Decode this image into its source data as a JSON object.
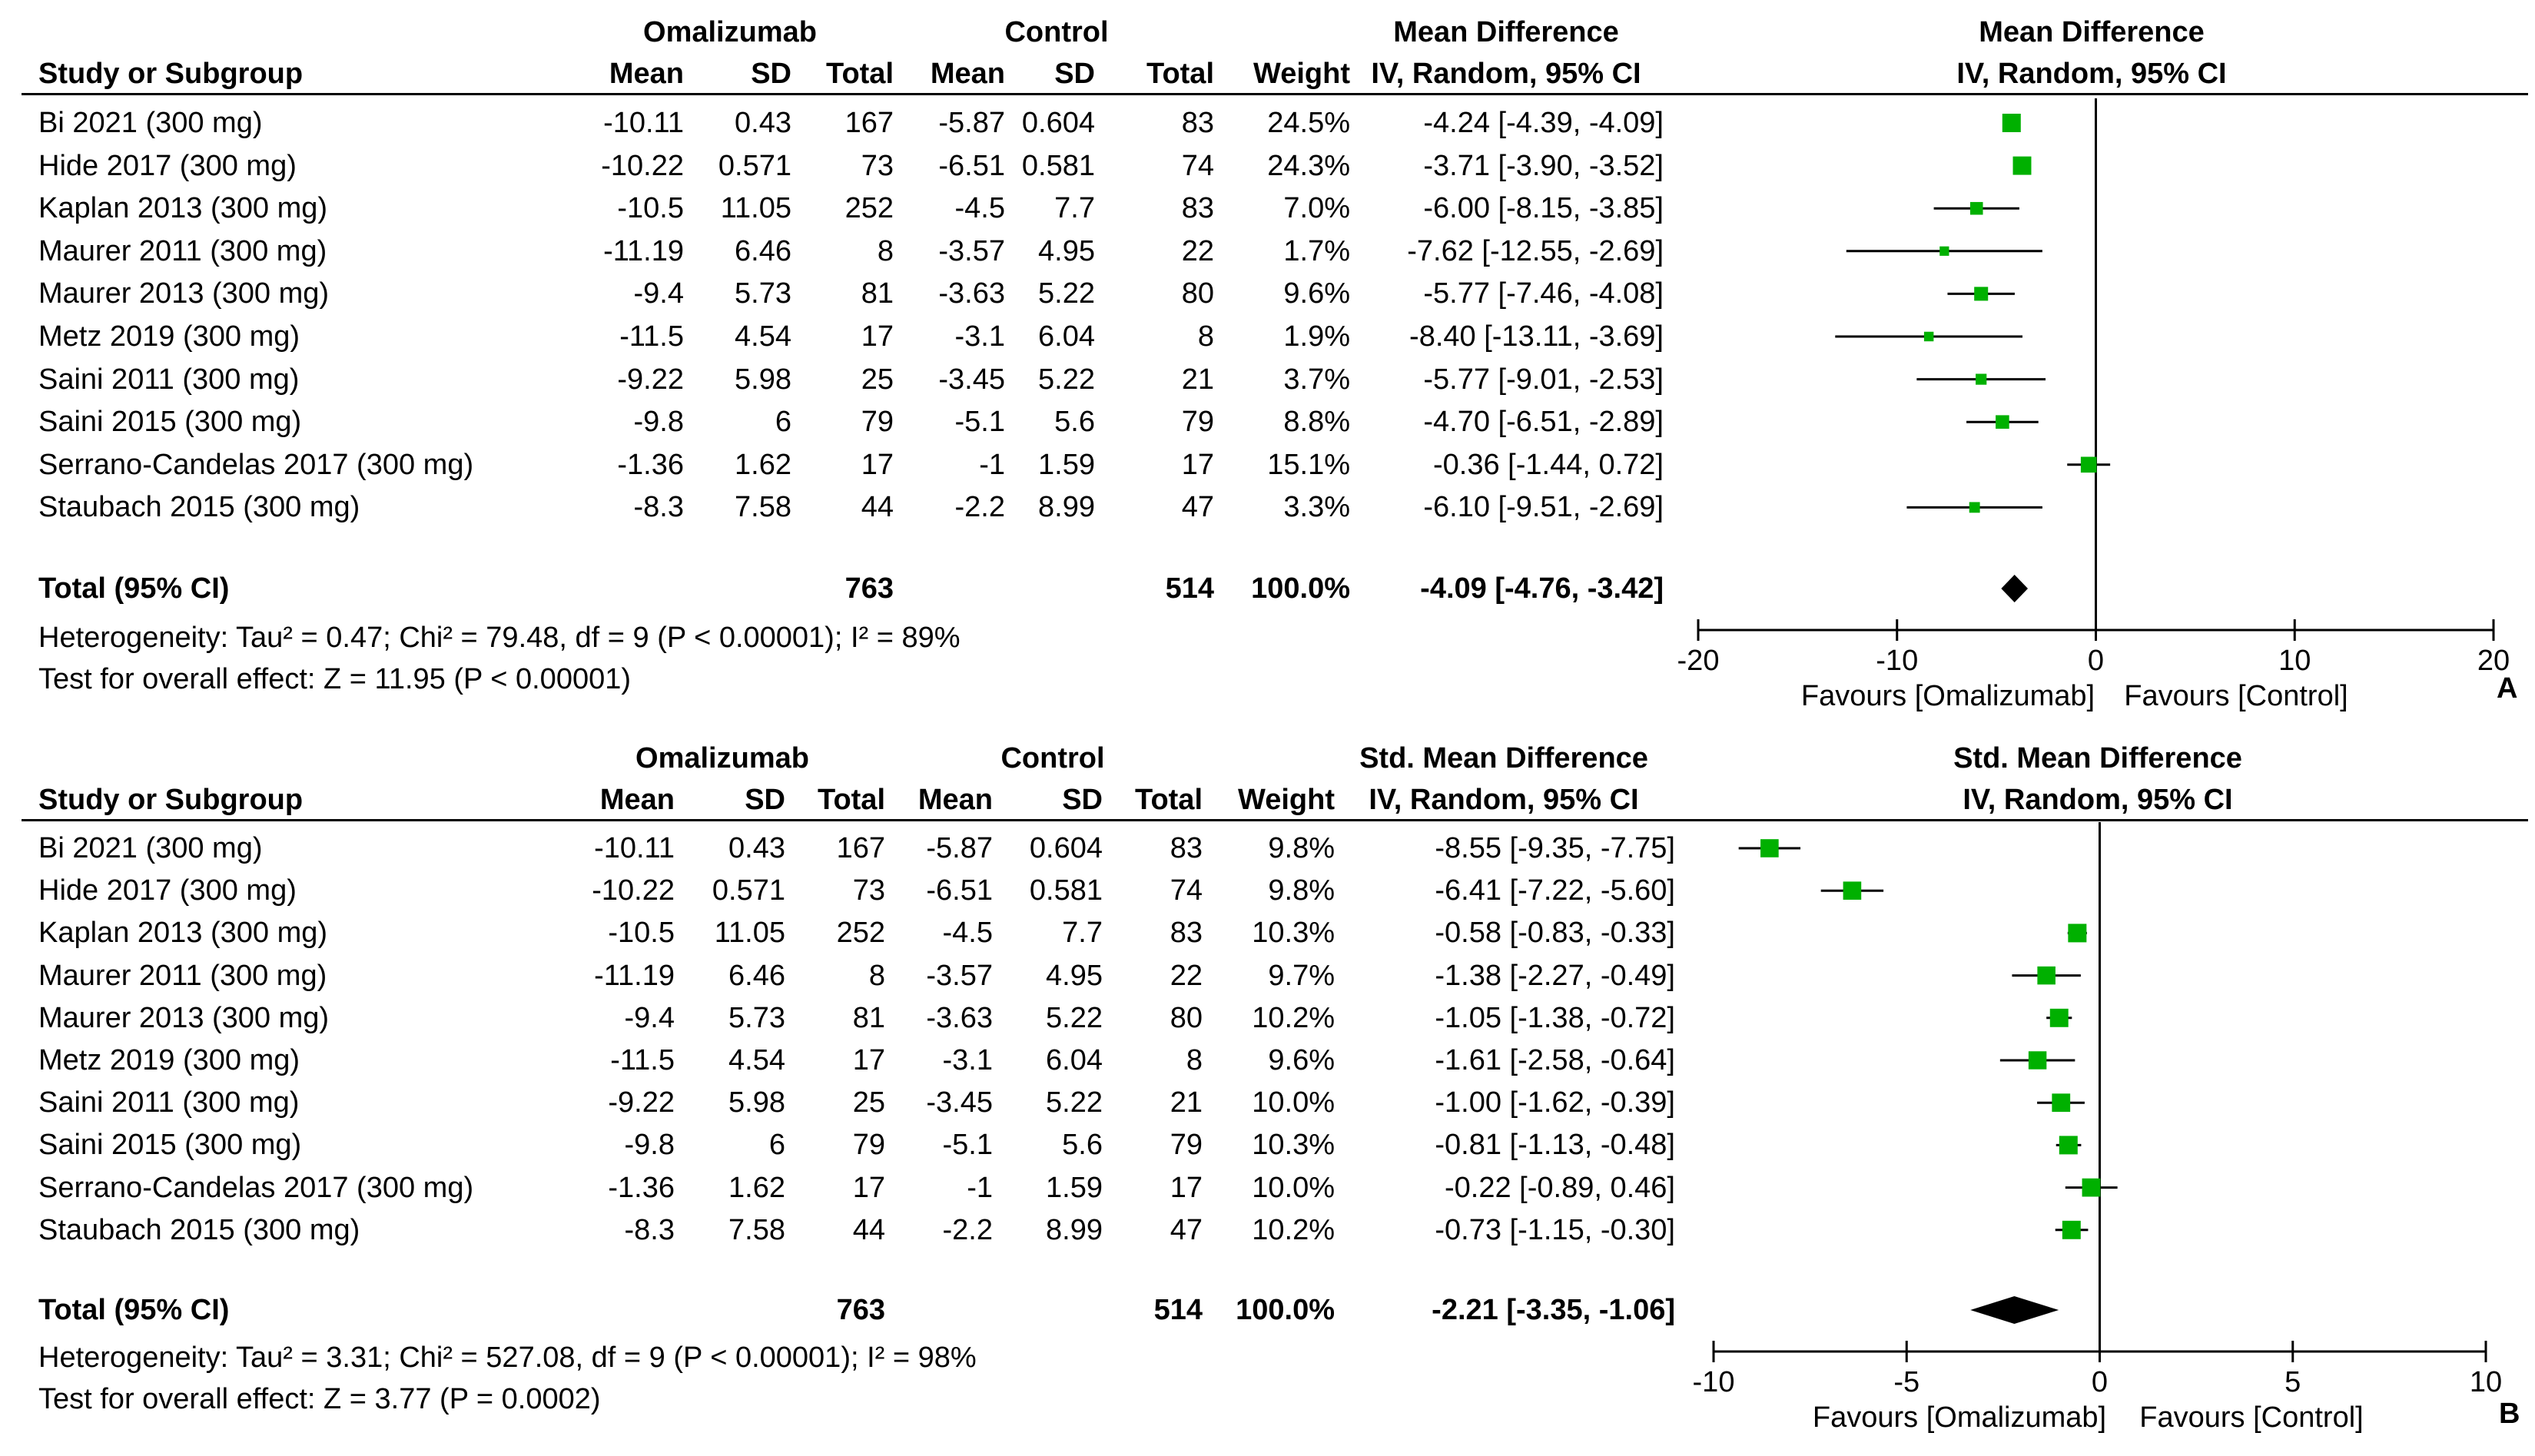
{
  "panels": [
    {
      "id": "A",
      "panel_label": "A",
      "group1_header": "Omalizumab",
      "group2_header": "Control",
      "effect_header": "Mean Difference",
      "plot_header": "Mean Difference",
      "method_header": "IV, Random, 95% CI",
      "col_study": "Study or Subgroup",
      "col_mean": "Mean",
      "col_sd": "SD",
      "col_total": "Total",
      "col_weight": "Weight",
      "rows": [
        {
          "study": "Bi 2021 (300 mg)",
          "m1": "-10.11",
          "sd1": "0.43",
          "n1": "167",
          "m2": "-5.87",
          "sd2": "0.604",
          "n2": "83",
          "weight": "24.5%",
          "ci": "-4.24 [-4.39, -4.09]"
        },
        {
          "study": "Hide 2017 (300 mg)",
          "m1": "-10.22",
          "sd1": "0.571",
          "n1": "73",
          "m2": "-6.51",
          "sd2": "0.581",
          "n2": "74",
          "weight": "24.3%",
          "ci": "-3.71 [-3.90, -3.52]"
        },
        {
          "study": "Kaplan 2013 (300 mg)",
          "m1": "-10.5",
          "sd1": "11.05",
          "n1": "252",
          "m2": "-4.5",
          "sd2": "7.7",
          "n2": "83",
          "weight": "7.0%",
          "ci": "-6.00 [-8.15, -3.85]"
        },
        {
          "study": "Maurer 2011 (300 mg)",
          "m1": "-11.19",
          "sd1": "6.46",
          "n1": "8",
          "m2": "-3.57",
          "sd2": "4.95",
          "n2": "22",
          "weight": "1.7%",
          "ci": "-7.62 [-12.55, -2.69]"
        },
        {
          "study": "Maurer 2013 (300 mg)",
          "m1": "-9.4",
          "sd1": "5.73",
          "n1": "81",
          "m2": "-3.63",
          "sd2": "5.22",
          "n2": "80",
          "weight": "9.6%",
          "ci": "-5.77 [-7.46, -4.08]"
        },
        {
          "study": "Metz 2019 (300 mg)",
          "m1": "-11.5",
          "sd1": "4.54",
          "n1": "17",
          "m2": "-3.1",
          "sd2": "6.04",
          "n2": "8",
          "weight": "1.9%",
          "ci": "-8.40 [-13.11, -3.69]"
        },
        {
          "study": "Saini 2011 (300 mg)",
          "m1": "-9.22",
          "sd1": "5.98",
          "n1": "25",
          "m2": "-3.45",
          "sd2": "5.22",
          "n2": "21",
          "weight": "3.7%",
          "ci": "-5.77 [-9.01, -2.53]"
        },
        {
          "study": "Saini 2015 (300 mg)",
          "m1": "-9.8",
          "sd1": "6",
          "n1": "79",
          "m2": "-5.1",
          "sd2": "5.6",
          "n2": "79",
          "weight": "8.8%",
          "ci": "-4.70 [-6.51, -2.89]"
        },
        {
          "study": "Serrano-Candelas 2017 (300 mg)",
          "m1": "-1.36",
          "sd1": "1.62",
          "n1": "17",
          "m2": "-1",
          "sd2": "1.59",
          "n2": "17",
          "weight": "15.1%",
          "ci": "-0.36 [-1.44, 0.72]"
        },
        {
          "study": "Staubach 2015 (300 mg)",
          "m1": "-8.3",
          "sd1": "7.58",
          "n1": "44",
          "m2": "-2.2",
          "sd2": "8.99",
          "n2": "47",
          "weight": "3.3%",
          "ci": "-6.10 [-9.51, -2.69]"
        }
      ],
      "total": {
        "label": "Total (95% CI)",
        "n1": "763",
        "n2": "514",
        "weight": "100.0%",
        "ci": "-4.09 [-4.76, -3.42]"
      },
      "heterogeneity": "Heterogeneity: Tau² = 0.47; Chi² = 79.48, df = 9 (P < 0.00001); I² = 89%",
      "overall_effect": "Test for overall effect: Z = 11.95 (P < 0.00001)",
      "axis_ticks": [
        "-20",
        "-10",
        "0",
        "10",
        "20"
      ],
      "favours_left": "Favours [Omalizumab]",
      "favours_right": "Favours [Control]"
    },
    {
      "id": "B",
      "panel_label": "B",
      "group1_header": "Omalizumab",
      "group2_header": "Control",
      "effect_header": "Std. Mean Difference",
      "plot_header": "Std. Mean Difference",
      "method_header": "IV, Random, 95% CI",
      "col_study": "Study or Subgroup",
      "col_mean": "Mean",
      "col_sd": "SD",
      "col_total": "Total",
      "col_weight": "Weight",
      "rows": [
        {
          "study": "Bi 2021 (300 mg)",
          "m1": "-10.11",
          "sd1": "0.43",
          "n1": "167",
          "m2": "-5.87",
          "sd2": "0.604",
          "n2": "83",
          "weight": "9.8%",
          "ci": "-8.55 [-9.35, -7.75]"
        },
        {
          "study": "Hide 2017 (300 mg)",
          "m1": "-10.22",
          "sd1": "0.571",
          "n1": "73",
          "m2": "-6.51",
          "sd2": "0.581",
          "n2": "74",
          "weight": "9.8%",
          "ci": "-6.41 [-7.22, -5.60]"
        },
        {
          "study": "Kaplan 2013 (300 mg)",
          "m1": "-10.5",
          "sd1": "11.05",
          "n1": "252",
          "m2": "-4.5",
          "sd2": "7.7",
          "n2": "83",
          "weight": "10.3%",
          "ci": "-0.58 [-0.83, -0.33]"
        },
        {
          "study": "Maurer 2011 (300 mg)",
          "m1": "-11.19",
          "sd1": "6.46",
          "n1": "8",
          "m2": "-3.57",
          "sd2": "4.95",
          "n2": "22",
          "weight": "9.7%",
          "ci": "-1.38 [-2.27, -0.49]"
        },
        {
          "study": "Maurer 2013 (300 mg)",
          "m1": "-9.4",
          "sd1": "5.73",
          "n1": "81",
          "m2": "-3.63",
          "sd2": "5.22",
          "n2": "80",
          "weight": "10.2%",
          "ci": "-1.05 [-1.38, -0.72]"
        },
        {
          "study": "Metz 2019 (300 mg)",
          "m1": "-11.5",
          "sd1": "4.54",
          "n1": "17",
          "m2": "-3.1",
          "sd2": "6.04",
          "n2": "8",
          "weight": "9.6%",
          "ci": "-1.61 [-2.58, -0.64]"
        },
        {
          "study": "Saini 2011 (300 mg)",
          "m1": "-9.22",
          "sd1": "5.98",
          "n1": "25",
          "m2": "-3.45",
          "sd2": "5.22",
          "n2": "21",
          "weight": "10.0%",
          "ci": "-1.00 [-1.62, -0.39]"
        },
        {
          "study": "Saini 2015 (300 mg)",
          "m1": "-9.8",
          "sd1": "6",
          "n1": "79",
          "m2": "-5.1",
          "sd2": "5.6",
          "n2": "79",
          "weight": "10.3%",
          "ci": "-0.81 [-1.13, -0.48]"
        },
        {
          "study": "Serrano-Candelas 2017 (300 mg)",
          "m1": "-1.36",
          "sd1": "1.62",
          "n1": "17",
          "m2": "-1",
          "sd2": "1.59",
          "n2": "17",
          "weight": "10.0%",
          "ci": "-0.22 [-0.89, 0.46]"
        },
        {
          "study": "Staubach 2015 (300 mg)",
          "m1": "-8.3",
          "sd1": "7.58",
          "n1": "44",
          "m2": "-2.2",
          "sd2": "8.99",
          "n2": "47",
          "weight": "10.2%",
          "ci": "-0.73 [-1.15, -0.30]"
        }
      ],
      "total": {
        "label": "Total (95% CI)",
        "n1": "763",
        "n2": "514",
        "weight": "100.0%",
        "ci": "-2.21 [-3.35, -1.06]"
      },
      "heterogeneity": "Heterogeneity: Tau² = 3.31; Chi² = 527.08, df = 9 (P < 0.00001); I² = 98%",
      "overall_effect": "Test for overall effect: Z = 3.77 (P = 0.0002)",
      "axis_ticks": [
        "-10",
        "-5",
        "0",
        "5",
        "10"
      ],
      "favours_left": "Favours [Omalizumab]",
      "favours_right": "Favours [Control]"
    }
  ],
  "colors": {
    "marker": "#00b000",
    "line": "#000000",
    "diamond": "#000000"
  },
  "chart_data": [
    {
      "type": "forest",
      "title": "Mean Difference IV, Random, 95% CI",
      "xlim": [
        -20,
        20
      ],
      "xticks": [
        -20,
        -10,
        0,
        10,
        20
      ],
      "categories": [
        "Bi 2021 (300 mg)",
        "Hide 2017 (300 mg)",
        "Kaplan 2013 (300 mg)",
        "Maurer 2011 (300 mg)",
        "Maurer 2013 (300 mg)",
        "Metz 2019 (300 mg)",
        "Saini 2011 (300 mg)",
        "Saini 2015 (300 mg)",
        "Serrano-Candelas 2017 (300 mg)",
        "Staubach 2015 (300 mg)"
      ],
      "estimates": [
        -4.24,
        -3.71,
        -6.0,
        -7.62,
        -5.77,
        -8.4,
        -5.77,
        -4.7,
        -0.36,
        -6.1
      ],
      "lower": [
        -4.39,
        -3.9,
        -8.15,
        -12.55,
        -7.46,
        -13.11,
        -9.01,
        -6.51,
        -1.44,
        -9.51
      ],
      "upper": [
        -4.09,
        -3.52,
        -3.85,
        -2.69,
        -4.08,
        -3.69,
        -2.53,
        -2.89,
        0.72,
        -2.69
      ],
      "weights": [
        24.5,
        24.3,
        7.0,
        1.7,
        9.6,
        1.9,
        3.7,
        8.8,
        15.1,
        3.3
      ],
      "pooled": {
        "estimate": -4.09,
        "lower": -4.76,
        "upper": -3.42
      }
    },
    {
      "type": "forest",
      "title": "Std. Mean Difference IV, Random, 95% CI",
      "xlim": [
        -10,
        10
      ],
      "xticks": [
        -10,
        -5,
        0,
        5,
        10
      ],
      "categories": [
        "Bi 2021 (300 mg)",
        "Hide 2017 (300 mg)",
        "Kaplan 2013 (300 mg)",
        "Maurer 2011 (300 mg)",
        "Maurer 2013 (300 mg)",
        "Metz 2019 (300 mg)",
        "Saini 2011 (300 mg)",
        "Saini 2015 (300 mg)",
        "Serrano-Candelas 2017 (300 mg)",
        "Staubach 2015 (300 mg)"
      ],
      "estimates": [
        -8.55,
        -6.41,
        -0.58,
        -1.38,
        -1.05,
        -1.61,
        -1.0,
        -0.81,
        -0.22,
        -0.73
      ],
      "lower": [
        -9.35,
        -7.22,
        -0.83,
        -2.27,
        -1.38,
        -2.58,
        -1.62,
        -1.13,
        -0.89,
        -1.15
      ],
      "upper": [
        -7.75,
        -5.6,
        -0.33,
        -0.49,
        -0.72,
        -0.64,
        -0.39,
        -0.48,
        0.46,
        -0.3
      ],
      "weights": [
        9.8,
        9.8,
        10.3,
        9.7,
        10.2,
        9.6,
        10.0,
        10.3,
        10.0,
        10.2
      ],
      "pooled": {
        "estimate": -2.21,
        "lower": -3.35,
        "upper": -1.06
      }
    }
  ]
}
